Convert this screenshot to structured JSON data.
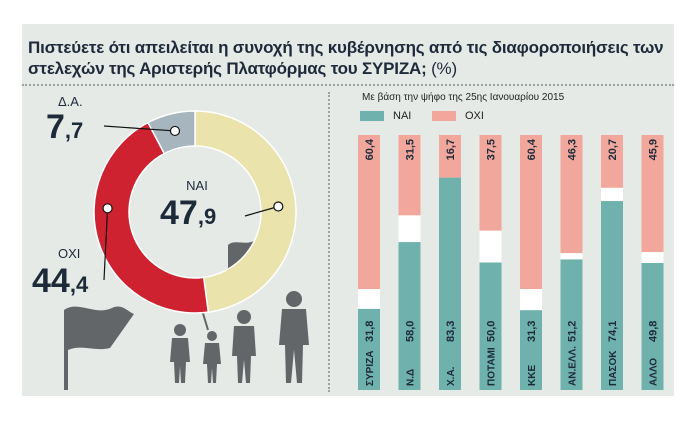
{
  "title": "Πιστεύετε ότι απειλείται η συνοχή της κυβέρνησης από τις διαφοροποιήσεις των στελεχών της Αριστερής Πλατφόρμας του ΣΥΡΙΖΑ;",
  "title_unit": "(%)",
  "colors": {
    "nai": "#6fb1ac",
    "oxi": "#f1a79b",
    "da": "#a7b5be",
    "donut_yes": "#eae3ac",
    "donut_no": "#cf2231",
    "figures": "#636668",
    "ink": "#1d2a3a"
  },
  "chart_data": [
    {
      "type": "pie",
      "style": "donut",
      "slices": [
        {
          "label": "ΝΑΙ",
          "value": 47.9,
          "value_label": "47,9",
          "color": "#eae3ac"
        },
        {
          "label": "ΟΧΙ",
          "value": 44.4,
          "value_label": "44,4",
          "color": "#cf2231"
        },
        {
          "label": "Δ.Α.",
          "value": 7.7,
          "value_label": "7,7",
          "color": "#a7b5be"
        }
      ]
    },
    {
      "type": "bar",
      "stacked": true,
      "orientation": "vertical",
      "subtitle": "Με βάση την ψήφο της 25ης Ιανουαρίου 2015",
      "categories": [
        "ΣΥΡΙΖΑ",
        "Ν.Δ",
        "Χ.Α.",
        "ΠΟΤΑΜΙ",
        "ΚΚΕ",
        "ΑΝ.ΕΛΛ.",
        "ΠΑΣΟΚ",
        "ΑΛΛΟ"
      ],
      "series": [
        {
          "name": "ΝΑΙ",
          "color": "#6fb1ac",
          "values": [
            31.8,
            58.0,
            83.3,
            50.0,
            31.3,
            51.2,
            74.1,
            49.8
          ],
          "labels": [
            "31,8",
            "58,0",
            "83,3",
            "50,0",
            "31,3",
            "51,2",
            "74,1",
            "49,8"
          ]
        },
        {
          "name": "ΟΧΙ",
          "color": "#f1a79b",
          "values": [
            60.4,
            31.5,
            16.7,
            37.5,
            60.4,
            46.3,
            20.7,
            45.9
          ],
          "labels": [
            "60,4",
            "31,5",
            "16,7",
            "37,5",
            "60,4",
            "46,3",
            "20,7",
            "45,9"
          ]
        }
      ],
      "legend": "top-left",
      "ylim": [
        0,
        100
      ]
    }
  ]
}
